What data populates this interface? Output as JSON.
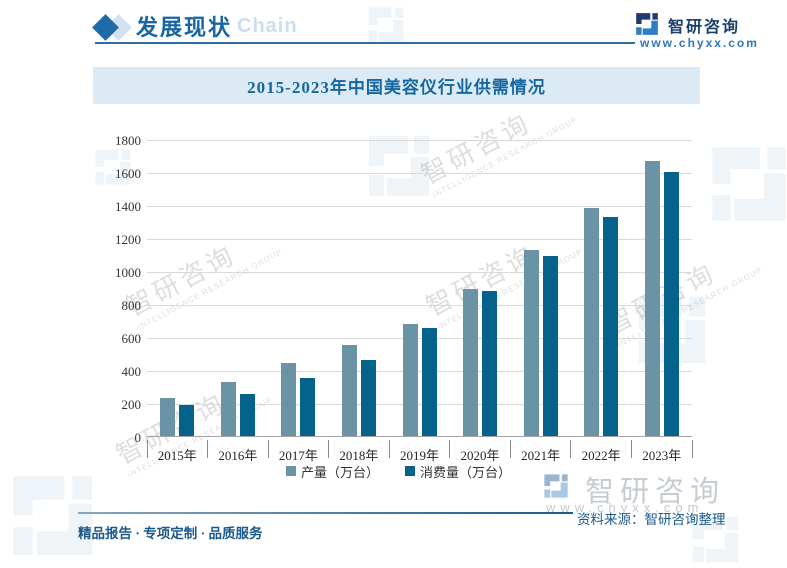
{
  "header": {
    "section_title": "发展现状",
    "section_watermark": "Chain",
    "brand_name": "智研咨询",
    "brand_url": "www.chyxx.com"
  },
  "chart_data": {
    "type": "bar",
    "title": "2015-2023年中国美容仪行业供需情况",
    "categories": [
      "2015年",
      "2016年",
      "2017年",
      "2018年",
      "2019年",
      "2020年",
      "2021年",
      "2022年",
      "2023年"
    ],
    "series": [
      {
        "name": "产量（万台）",
        "color": "#6A93A6",
        "values": [
          230,
          325,
          440,
          550,
          680,
          890,
          1125,
          1380,
          1665
        ]
      },
      {
        "name": "消费量（万台）",
        "color": "#05628A",
        "values": [
          190,
          255,
          350,
          460,
          655,
          880,
          1090,
          1330,
          1600
        ]
      }
    ],
    "xlabel": "",
    "ylabel": "",
    "ylim": [
      0,
      1800
    ],
    "ytick_step": 200,
    "grid": true,
    "legend_position": "bottom"
  },
  "footer": {
    "tagline": "精品报告 · 专项定制 · 品质服务",
    "source": "资料来源：智研咨询整理",
    "watermark_brand": "智研咨询",
    "watermark_url": "www.chyxx.com"
  },
  "watermark": {
    "brand": "智研咨询",
    "subtitle": "INTELLIGENCE RESEARCH GROUP"
  },
  "colors": {
    "production_bar": "#6A93A6",
    "consumption_bar": "#05628A",
    "banner_bg": "#DCEAF5",
    "banner_text": "#14679F",
    "accent_blue": "#1765A3",
    "gridline": "#D9D9D9"
  }
}
